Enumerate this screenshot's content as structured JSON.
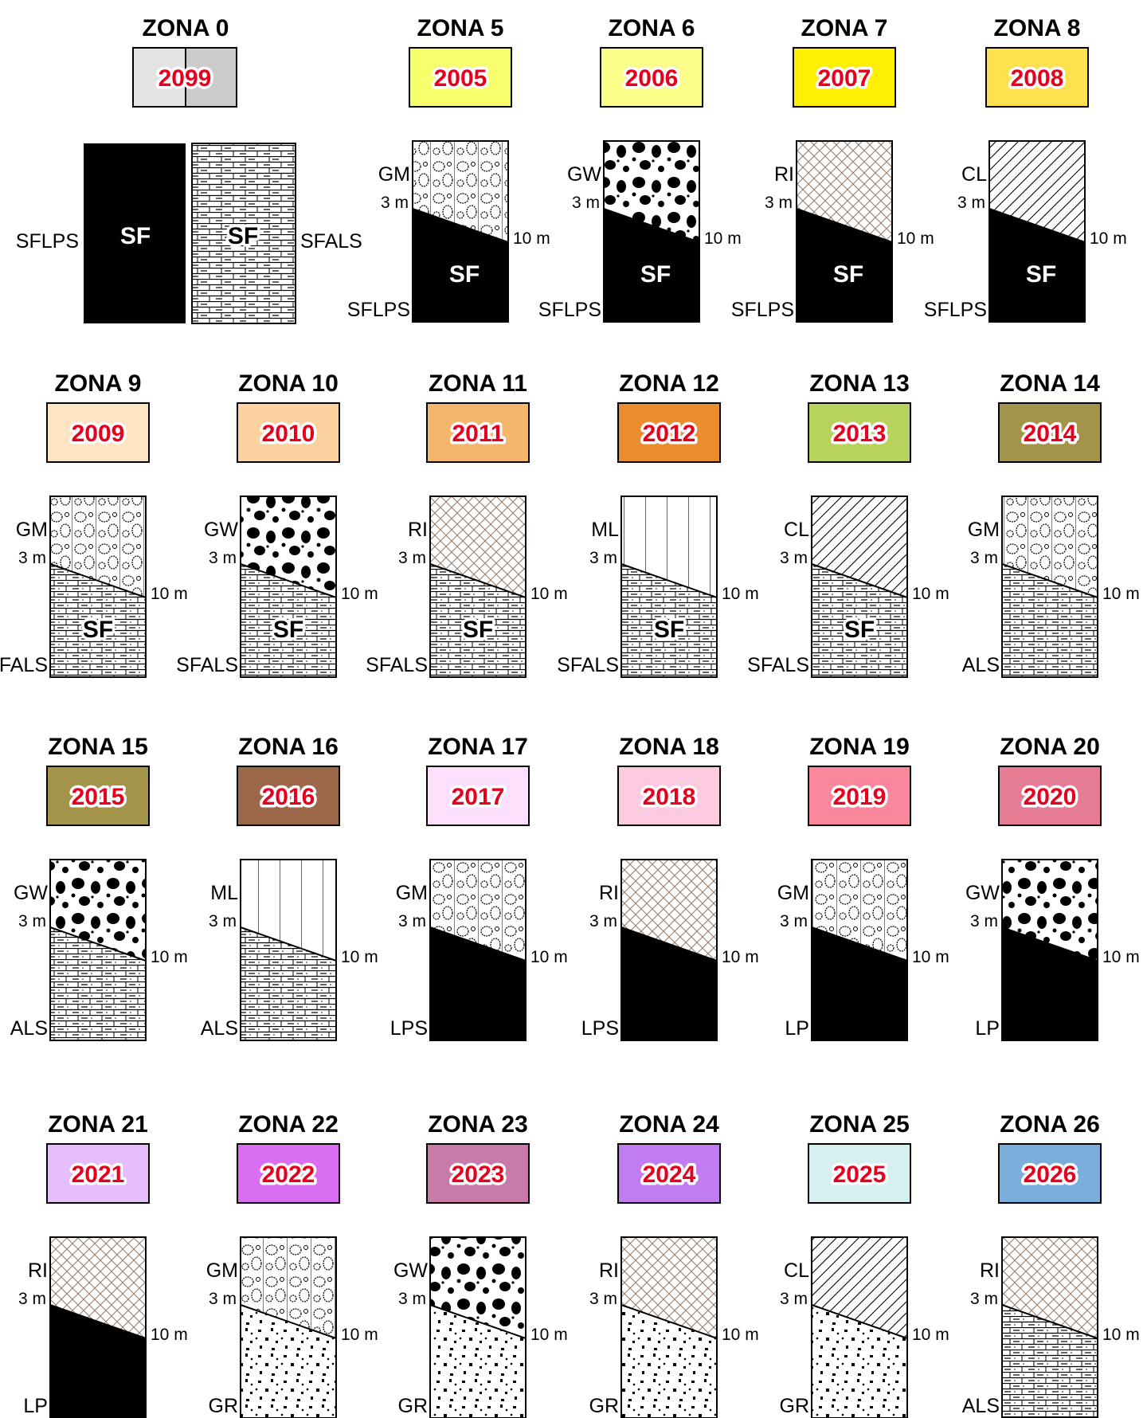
{
  "zone0": {
    "title": "ZONA 0",
    "code": "2099",
    "colors": [
      "#e3e3e3",
      "#cbcbcb"
    ],
    "left_label": "SFLPS",
    "right_label": "SFALS",
    "sf": "SF"
  },
  "depth_top": "3 m",
  "depth_bottom": "10 m",
  "sf_text": "SF",
  "zones": [
    {
      "title": "ZONA 5",
      "code": "2005",
      "color": "#f8ff6c",
      "top": "GM",
      "bottom": "SFLPS",
      "top_pattern": "gm",
      "bottom_pattern": "black",
      "sf": true
    },
    {
      "title": "ZONA 6",
      "code": "2006",
      "color": "#fbff8a",
      "top": "GW",
      "bottom": "SFLPS",
      "top_pattern": "gw",
      "bottom_pattern": "black",
      "sf": true
    },
    {
      "title": "ZONA 7",
      "code": "2007",
      "color": "#ffef00",
      "top": "RI",
      "bottom": "SFLPS",
      "top_pattern": "ri",
      "bottom_pattern": "black",
      "sf": true
    },
    {
      "title": "ZONA 8",
      "code": "2008",
      "color": "#ffe04e",
      "top": "CL",
      "bottom": "SFLPS",
      "top_pattern": "cl",
      "bottom_pattern": "black",
      "sf": true
    },
    {
      "title": "ZONA 9",
      "code": "2009",
      "color": "#fde5c3",
      "top": "GM",
      "bottom": "SFALS",
      "top_pattern": "gm",
      "bottom_pattern": "brick",
      "sf": true
    },
    {
      "title": "ZONA 10",
      "code": "2010",
      "color": "#fbd29f",
      "top": "GW",
      "bottom": "SFALS",
      "top_pattern": "gw",
      "bottom_pattern": "brick",
      "sf": true
    },
    {
      "title": "ZONA 11",
      "code": "2011",
      "color": "#f4b56c",
      "top": "RI",
      "bottom": "SFALS",
      "top_pattern": "ri",
      "bottom_pattern": "brick",
      "sf": true
    },
    {
      "title": "ZONA 12",
      "code": "2012",
      "color": "#e98d2d",
      "top": "ML",
      "bottom": "SFALS",
      "top_pattern": "ml",
      "bottom_pattern": "brick",
      "sf": true
    },
    {
      "title": "ZONA 13",
      "code": "2013",
      "color": "#b8d25e",
      "top": "CL",
      "bottom": "SFALS",
      "top_pattern": "cl",
      "bottom_pattern": "brick",
      "sf": true
    },
    {
      "title": "ZONA 14",
      "code": "2014",
      "color": "#a39449",
      "top": "GM",
      "bottom": "ALS",
      "top_pattern": "gm",
      "bottom_pattern": "brick",
      "sf": false
    },
    {
      "title": "ZONA 15",
      "code": "2015",
      "color": "#a39449",
      "top": "GW",
      "bottom": "ALS",
      "top_pattern": "gw",
      "bottom_pattern": "brick",
      "sf": false
    },
    {
      "title": "ZONA 16",
      "code": "2016",
      "color": "#9c6849",
      "top": "ML",
      "bottom": "ALS",
      "top_pattern": "ml",
      "bottom_pattern": "brick",
      "sf": false
    },
    {
      "title": "ZONA 17",
      "code": "2017",
      "color": "#fde0fb",
      "top": "GM",
      "bottom": "LPS",
      "top_pattern": "gm",
      "bottom_pattern": "black",
      "sf": false
    },
    {
      "title": "ZONA 18",
      "code": "2018",
      "color": "#fdcbdf",
      "top": "RI",
      "bottom": "LPS",
      "top_pattern": "ri",
      "bottom_pattern": "black",
      "sf": false
    },
    {
      "title": "ZONA 19",
      "code": "2019",
      "color": "#fa879b",
      "top": "GM",
      "bottom": "LP",
      "top_pattern": "gm",
      "bottom_pattern": "black",
      "sf": false
    },
    {
      "title": "ZONA 20",
      "code": "2020",
      "color": "#e67d94",
      "top": "GW",
      "bottom": "LP",
      "top_pattern": "gw",
      "bottom_pattern": "black",
      "sf": false
    },
    {
      "title": "ZONA 21",
      "code": "2021",
      "color": "#e5bdfb",
      "top": "RI",
      "bottom": "LP",
      "top_pattern": "ri",
      "bottom_pattern": "black",
      "sf": false
    },
    {
      "title": "ZONA 22",
      "code": "2022",
      "color": "#d96ef3",
      "top": "GM",
      "bottom": "GR",
      "top_pattern": "gm",
      "bottom_pattern": "gr",
      "sf": false
    },
    {
      "title": "ZONA 23",
      "code": "2023",
      "color": "#c87aa8",
      "top": "GW",
      "bottom": "GR",
      "top_pattern": "gw",
      "bottom_pattern": "gr",
      "sf": false
    },
    {
      "title": "ZONA 24",
      "code": "2024",
      "color": "#c17cf1",
      "top": "RI",
      "bottom": "GR",
      "top_pattern": "ri",
      "bottom_pattern": "gr",
      "sf": false
    },
    {
      "title": "ZONA 25",
      "code": "2025",
      "color": "#d6f0ef",
      "top": "CL",
      "bottom": "GR",
      "top_pattern": "cl",
      "bottom_pattern": "gr",
      "sf": false
    },
    {
      "title": "ZONA 26",
      "code": "2026",
      "color": "#7caedc",
      "top": "RI",
      "bottom": "ALS",
      "top_pattern": "ri",
      "bottom_pattern": "brick",
      "sf": false
    }
  ]
}
